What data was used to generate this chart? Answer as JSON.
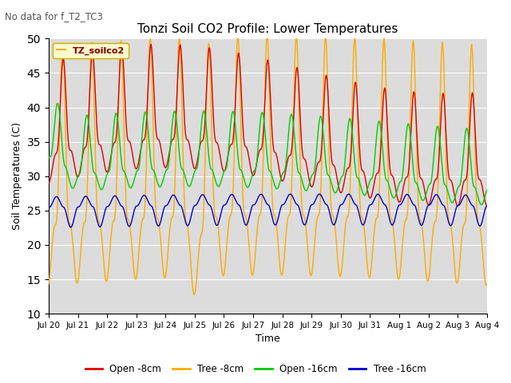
{
  "title": "Tonzi Soil CO2 Profile: Lower Temperatures",
  "top_left_text": "No data for f_T2_TC3",
  "ylabel": "Soil Temperatures (C)",
  "xlabel": "Time",
  "legend_label": "TZ_soilco2",
  "ylim": [
    10,
    50
  ],
  "yticks": [
    10,
    15,
    20,
    25,
    30,
    35,
    40,
    45,
    50
  ],
  "xtick_labels": [
    "Jul 20",
    "Jul 21",
    "Jul 22",
    "Jul 23",
    "Jul 24",
    "Jul 25",
    "Jul 26",
    "Jul 27",
    "Jul 28",
    "Jul 29",
    "Jul 30",
    "Jul 31",
    "Aug 1",
    "Aug 2",
    "Aug 3",
    "Aug 4"
  ],
  "bg_color": "#dcdcdc",
  "line_colors": {
    "open8": "#dd0000",
    "tree8": "#ffaa00",
    "open16": "#00cc00",
    "tree16": "#0000cc"
  },
  "legend_entries": [
    "Open -8cm",
    "Tree -8cm",
    "Open -16cm",
    "Tree -16cm"
  ],
  "fig_width": 6.4,
  "fig_height": 4.8,
  "dpi": 100
}
